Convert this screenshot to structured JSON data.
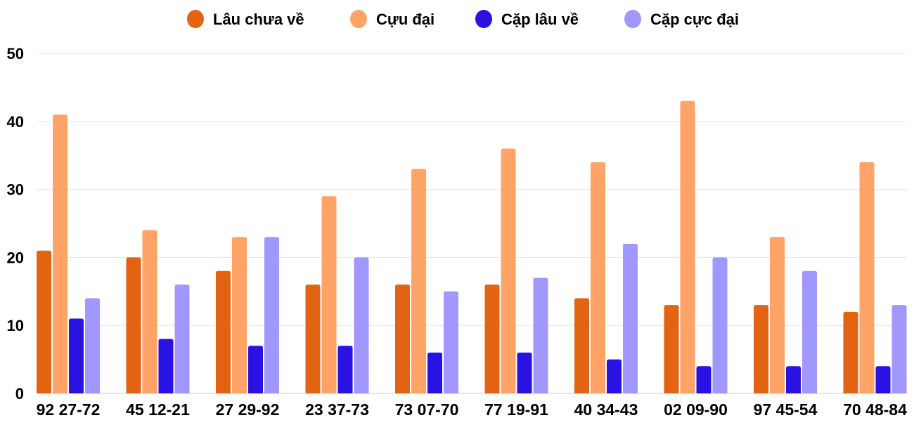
{
  "chart_data": {
    "type": "bar",
    "title": "",
    "xlabel": "",
    "ylabel": "",
    "ylim": [
      0,
      50
    ],
    "yticks": [
      0,
      10,
      20,
      30,
      40,
      50
    ],
    "grid": true,
    "legend_position": "top",
    "categories": [
      "92 27-72",
      "45 12-21",
      "27 29-92",
      "23 37-73",
      "73 07-70",
      "77 19-91",
      "40 34-43",
      "02 09-90",
      "97 45-54",
      "70 48-84"
    ],
    "series": [
      {
        "name": "Lâu chưa về",
        "color": "#e26312",
        "values": [
          21,
          20,
          18,
          16,
          16,
          16,
          14,
          13,
          13,
          12
        ]
      },
      {
        "name": "Cựu đại",
        "color": "#ffa366",
        "values": [
          41,
          24,
          23,
          29,
          33,
          36,
          34,
          43,
          23,
          34
        ]
      },
      {
        "name": "Cặp lâu về",
        "color": "#2a12e2",
        "values": [
          11,
          8,
          7,
          7,
          6,
          6,
          5,
          4,
          4,
          4
        ]
      },
      {
        "name": "Cặp cực đại",
        "color": "#a097ff",
        "values": [
          14,
          16,
          23,
          20,
          15,
          17,
          22,
          20,
          18,
          13
        ]
      }
    ]
  }
}
